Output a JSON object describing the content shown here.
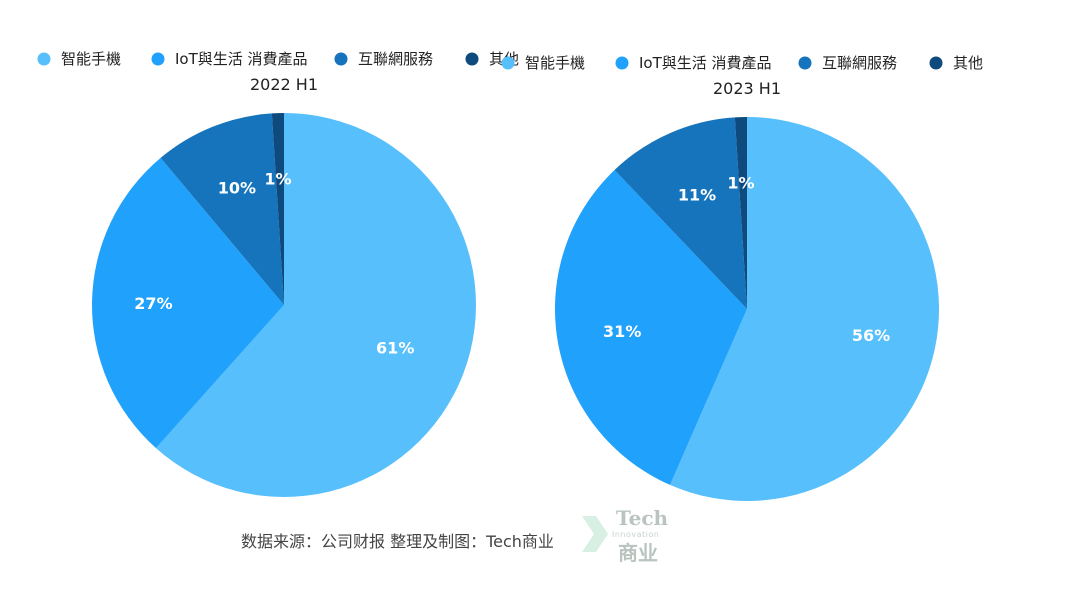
{
  "chart_data": [
    {
      "type": "pie",
      "title": "2022 H1",
      "categories": [
        "智能手機",
        "IoT與生活 消費產品",
        "互聯網服務",
        "其他"
      ],
      "values": [
        61,
        27,
        10,
        1
      ],
      "labels": [
        "61%",
        "27%",
        "10%",
        "1%"
      ],
      "colors": [
        "#56bffc",
        "#20a1fb",
        "#1574bb",
        "#0e4a7d"
      ],
      "legend_position": "top"
    },
    {
      "type": "pie",
      "title": "2023 H1",
      "categories": [
        "智能手機",
        "IoT與生活 消費產品",
        "互聯網服務",
        "其他"
      ],
      "values": [
        56,
        31,
        11,
        1
      ],
      "labels": [
        "56%",
        "31%",
        "11%",
        "1%"
      ],
      "colors": [
        "#56bffc",
        "#20a1fb",
        "#1574bb",
        "#0e4a7d"
      ],
      "legend_position": "top"
    }
  ],
  "source": "数据来源：公司财报 整理及制图：Tech商业",
  "watermark": {
    "line1": "Tech",
    "line2": "Innovation",
    "line3": "商业"
  }
}
